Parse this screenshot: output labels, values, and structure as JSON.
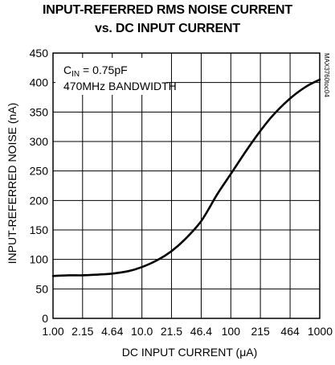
{
  "chart_data": {
    "type": "line",
    "title_line1": "INPUT-REFERRED RMS NOISE CURRENT",
    "title_line2": "vs. DC INPUT CURRENT",
    "xlabel_text": "DC INPUT CURRENT (",
    "xlabel_unit": "μA",
    "xlabel_close": ")",
    "ylabel": "INPUT-REFERRED NOISE (nA)",
    "x_scale": "log",
    "xlim": [
      1.0,
      1000
    ],
    "ylim": [
      0,
      450
    ],
    "x_ticks": [
      1.0,
      2.15,
      4.64,
      10.0,
      21.5,
      46.4,
      100,
      215,
      464,
      1000
    ],
    "x_tick_labels": [
      "1.00",
      "2.15",
      "4.64",
      "10.0",
      "21.5",
      "46.4",
      "100",
      "215",
      "464",
      "1000"
    ],
    "y_ticks": [
      0,
      50,
      100,
      150,
      200,
      250,
      300,
      350,
      400,
      450
    ],
    "y_tick_labels": [
      "0",
      "50",
      "100",
      "150",
      "200",
      "250",
      "300",
      "350",
      "400",
      "450"
    ],
    "grid": true,
    "annotation": {
      "cin_prefix": "C",
      "cin_sub": "IN",
      "cin_rest": " = 0.75pF",
      "bandwidth": "470MHz BANDWIDTH"
    },
    "part_code": "MAX3760toc04",
    "series": [
      {
        "x": [
          1.0,
          1.5,
          2.15,
          3.0,
          4.64,
          7.0,
          10.0,
          15.0,
          21.5,
          30.0,
          46.4,
          70.0,
          100,
          150,
          215,
          300,
          464,
          700,
          1000
        ],
        "y": [
          72,
          73,
          73,
          74,
          76,
          80,
          87,
          99,
          114,
          133,
          165,
          210,
          245,
          285,
          318,
          345,
          373,
          393,
          405
        ]
      }
    ]
  }
}
